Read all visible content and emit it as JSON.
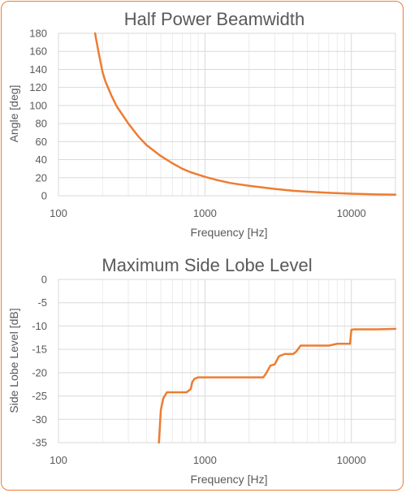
{
  "chart_data": [
    {
      "type": "line",
      "title": "Half Power Beamwidth",
      "xlabel": "Frequency [Hz]",
      "ylabel": "Angle [deg]",
      "xscale": "log",
      "xlim": [
        100,
        20000
      ],
      "ylim": [
        0,
        180
      ],
      "xticks": [
        "100",
        "1000",
        "10000"
      ],
      "yticks": [
        "0",
        "20",
        "40",
        "60",
        "80",
        "100",
        "120",
        "140",
        "160",
        "180"
      ],
      "grid": true,
      "line_color": "#ed7d31",
      "series": [
        {
          "x": [
            178,
            180,
            190,
            200,
            210,
            230,
            250,
            300,
            350,
            400,
            500,
            600,
            700,
            800,
            1000,
            1200,
            1500,
            2000,
            3000,
            4000,
            5000,
            7000,
            10000,
            15000,
            20000
          ],
          "y": [
            180,
            175,
            155,
            137,
            126,
            111,
            99,
            80,
            66,
            56,
            44,
            36,
            30,
            26,
            21,
            17.5,
            14,
            11,
            7.5,
            5.5,
            4.5,
            3.3,
            2.3,
            1.5,
            1.2
          ]
        }
      ]
    },
    {
      "type": "line",
      "title": "Maximum Side Lobe Level",
      "xlabel": "Frequency [Hz]",
      "ylabel": "Side Lobe Level [dB]",
      "xscale": "log",
      "xlim": [
        100,
        20000
      ],
      "ylim": [
        -35,
        0
      ],
      "xticks": [
        "100",
        "1000",
        "10000"
      ],
      "yticks": [
        "0",
        "-5",
        "-10",
        "-15",
        "-20",
        "-25",
        "-30",
        "-35"
      ],
      "grid": true,
      "line_color": "#ed7d31",
      "series": [
        {
          "x": [
            485,
            500,
            520,
            550,
            580,
            650,
            750,
            800,
            820,
            850,
            900,
            1000,
            1500,
            2000,
            2500,
            2600,
            2800,
            3000,
            3200,
            3500,
            4000,
            4200,
            4500,
            5000,
            7000,
            7500,
            8000,
            9000,
            9800,
            10000,
            10500,
            12000,
            15000,
            20000
          ],
          "y": [
            -35,
            -28,
            -25.5,
            -24.2,
            -24.2,
            -24.2,
            -24.2,
            -23.5,
            -22,
            -21.3,
            -21,
            -21,
            -21,
            -21,
            -21,
            -20.3,
            -18.5,
            -18.2,
            -16.5,
            -16,
            -16,
            -15.5,
            -14.2,
            -14.2,
            -14.2,
            -14,
            -13.8,
            -13.8,
            -13.8,
            -10.8,
            -10.7,
            -10.7,
            -10.7,
            -10.6
          ]
        }
      ]
    }
  ]
}
